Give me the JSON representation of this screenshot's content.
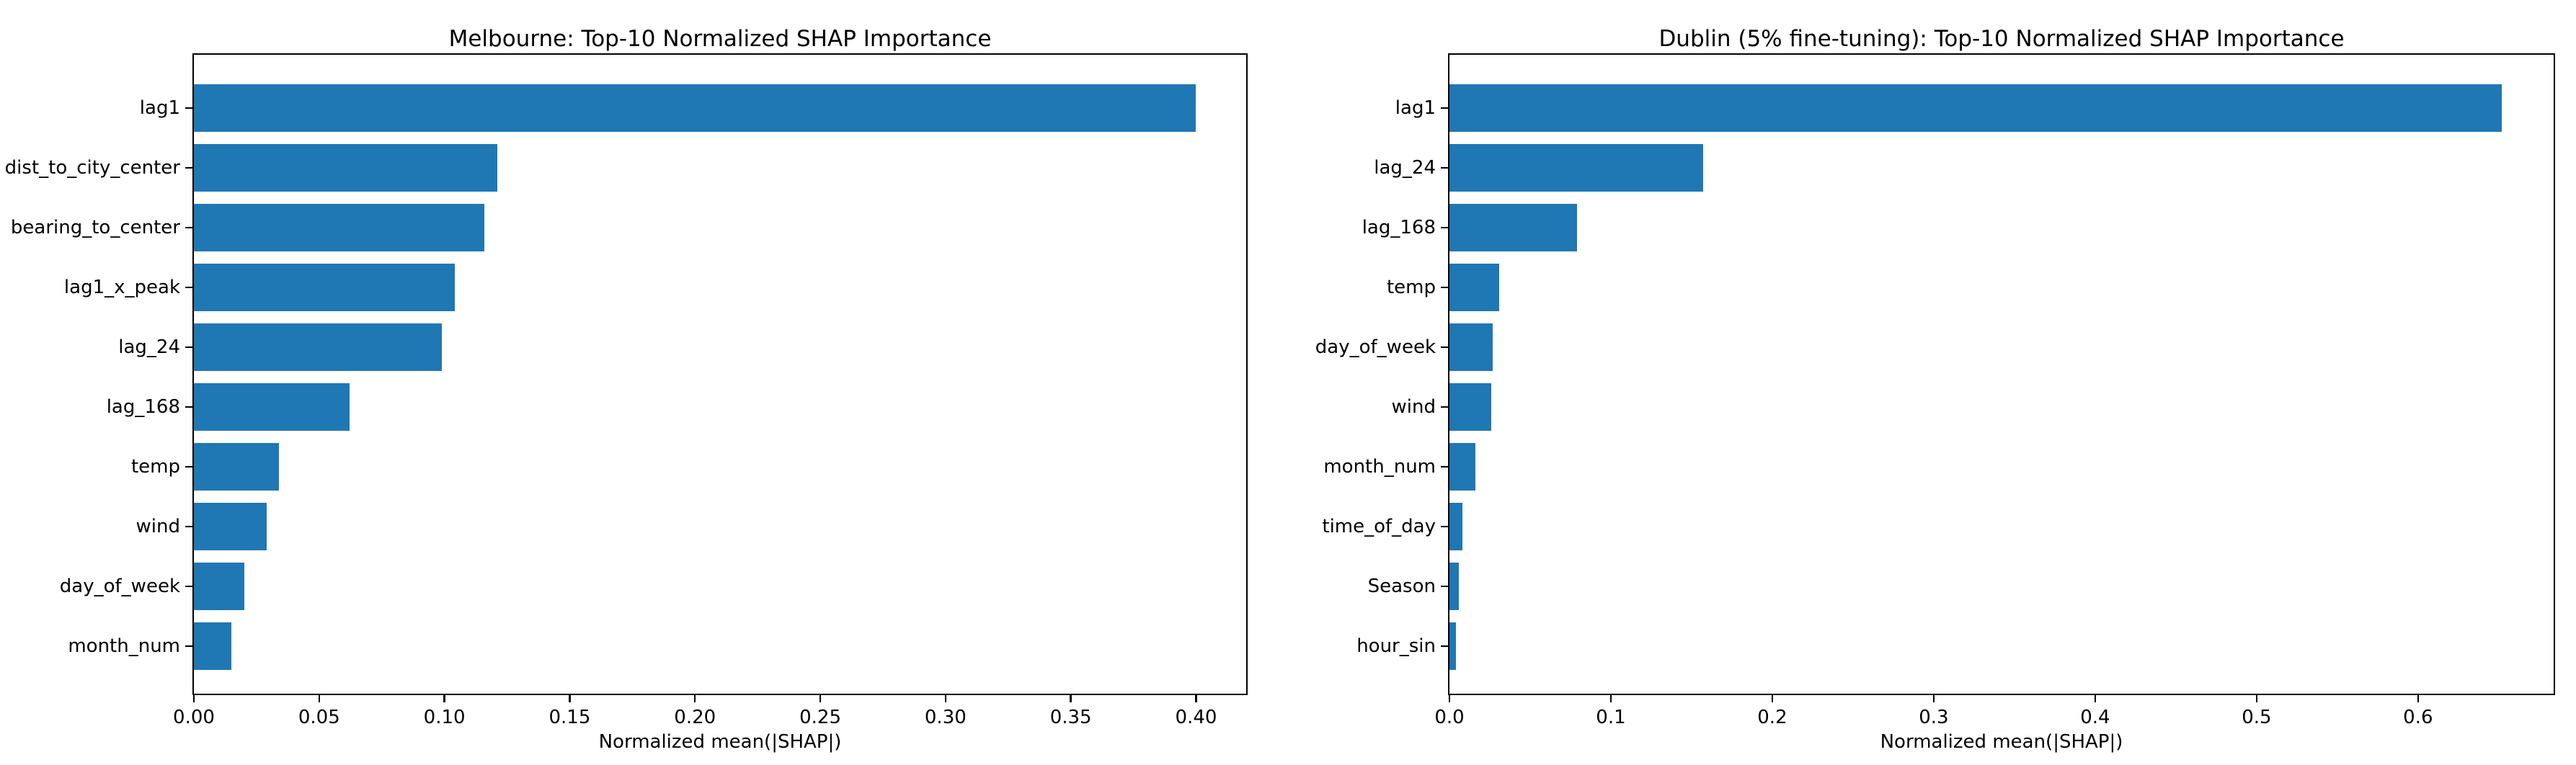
{
  "figure": {
    "background": "#ffffff",
    "text_color": "#000000"
  },
  "chart_data": [
    {
      "type": "bar",
      "orientation": "horizontal",
      "title": "Melbourne: Top-10 Normalized SHAP Importance",
      "xlabel": "Normalized mean(|SHAP|)",
      "categories": [
        "lag1",
        "dist_to_city_center",
        "bearing_to_center",
        "lag1_x_peak",
        "lag_24",
        "lag_168",
        "temp",
        "wind",
        "day_of_week",
        "month_num"
      ],
      "values": [
        0.4,
        0.121,
        0.116,
        0.104,
        0.099,
        0.062,
        0.034,
        0.029,
        0.02,
        0.015
      ],
      "xlim": [
        0,
        0.42
      ],
      "xticks": [
        0.0,
        0.05,
        0.1,
        0.15,
        0.2,
        0.25,
        0.3,
        0.35,
        0.4
      ],
      "xtick_labels": [
        "0.00",
        "0.05",
        "0.10",
        "0.15",
        "0.20",
        "0.25",
        "0.30",
        "0.35",
        "0.40"
      ],
      "bar_color": "#1f77b4",
      "grid": false,
      "legend": false
    },
    {
      "type": "bar",
      "orientation": "horizontal",
      "title": "Dublin (5% fine-tuning): Top-10 Normalized SHAP Importance",
      "xlabel": "Normalized mean(|SHAP|)",
      "categories": [
        "lag1",
        "lag_24",
        "lag_168",
        "temp",
        "day_of_week",
        "wind",
        "month_num",
        "time_of_day",
        "Season",
        "hour_sin"
      ],
      "values": [
        0.652,
        0.157,
        0.079,
        0.031,
        0.027,
        0.026,
        0.016,
        0.008,
        0.006,
        0.004
      ],
      "xlim": [
        0,
        0.684
      ],
      "xticks": [
        0.0,
        0.1,
        0.2,
        0.3,
        0.4,
        0.5,
        0.6
      ],
      "xtick_labels": [
        "0.0",
        "0.1",
        "0.2",
        "0.3",
        "0.4",
        "0.5",
        "0.6"
      ],
      "bar_color": "#1f77b4",
      "grid": false,
      "legend": false
    }
  ]
}
